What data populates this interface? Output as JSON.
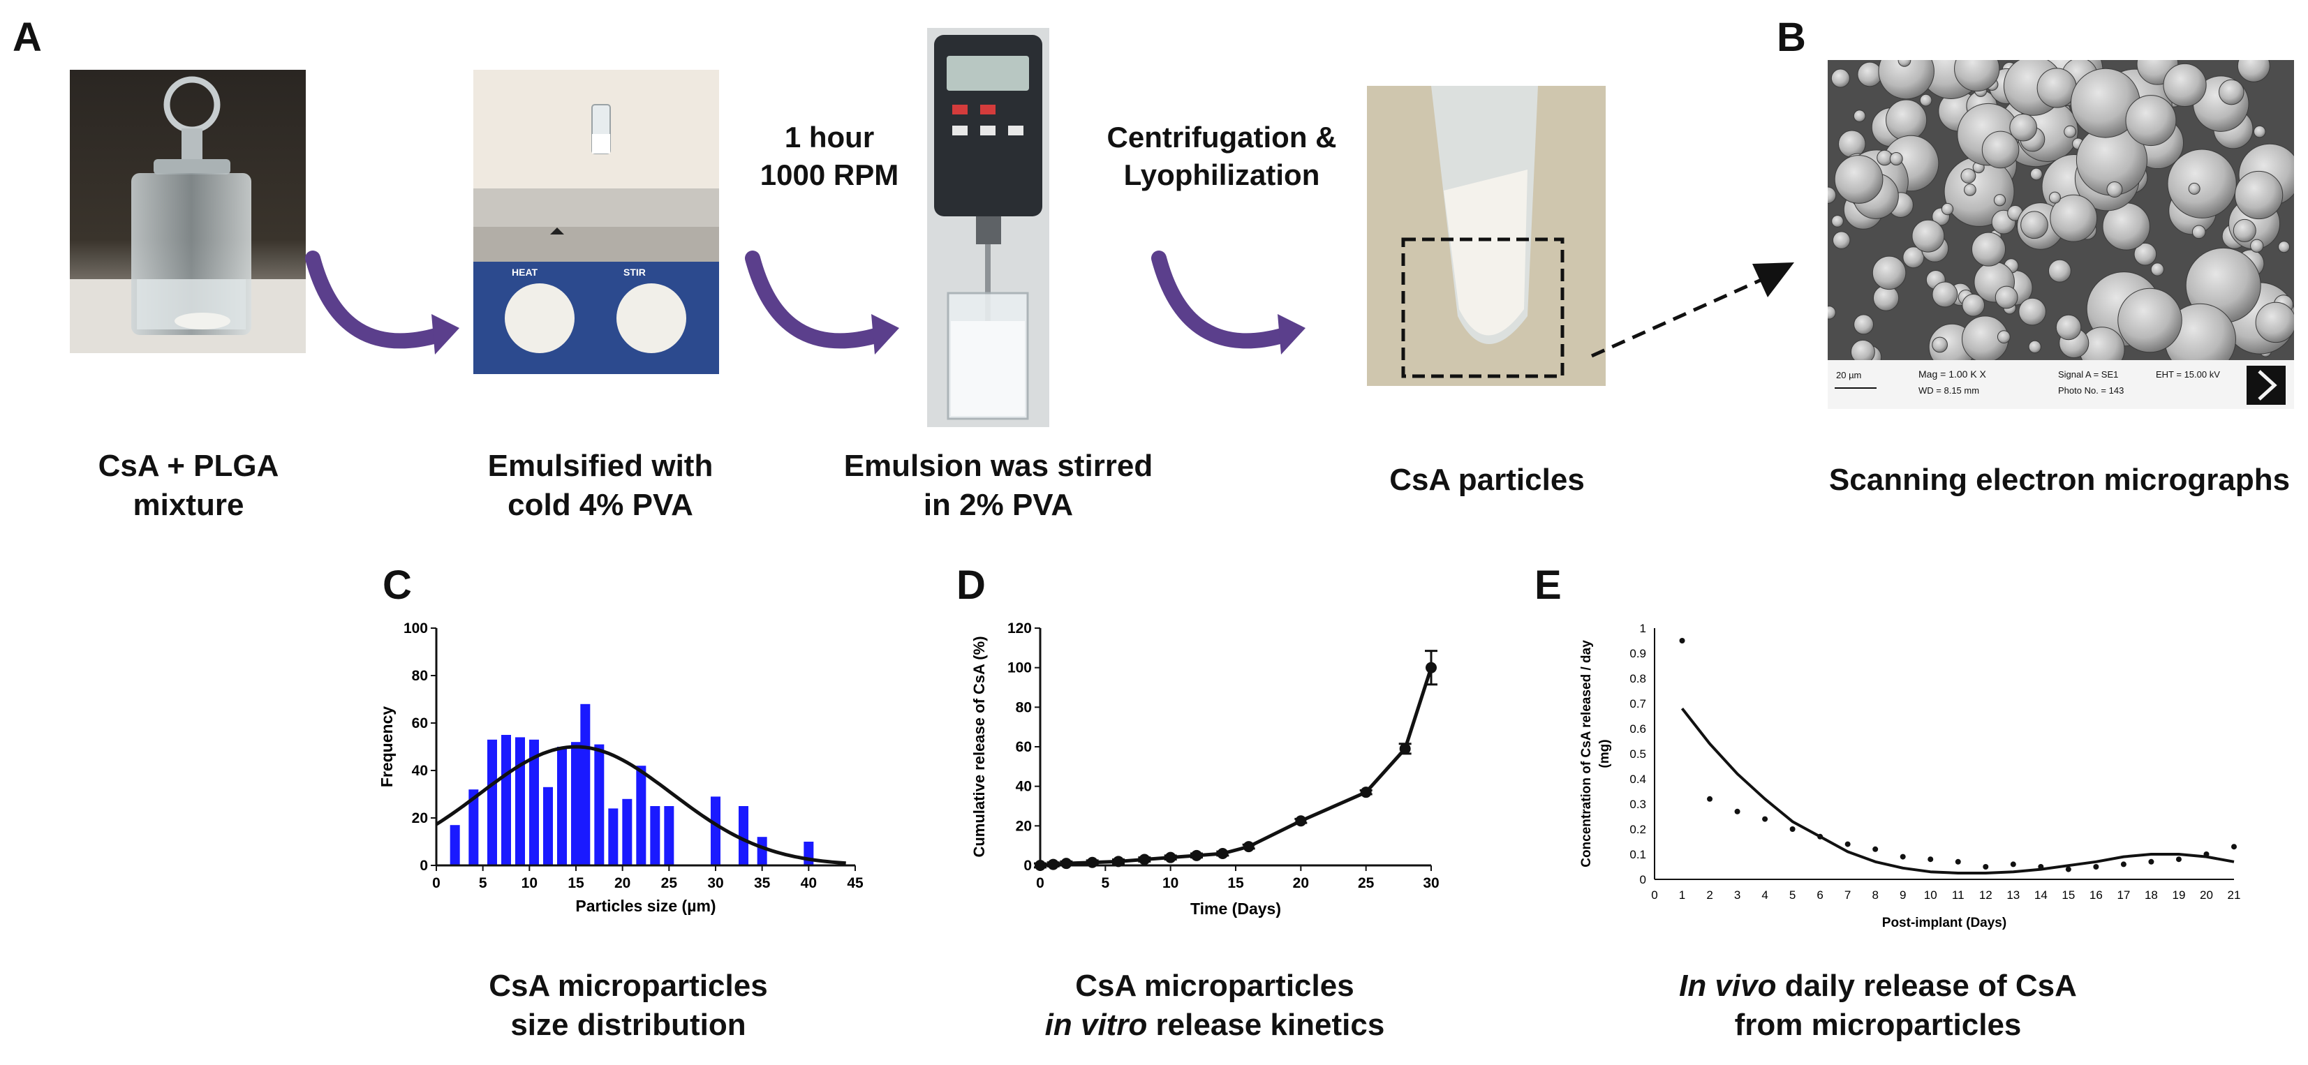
{
  "panel_a": {
    "letter": "A",
    "step_labels": [
      {
        "line1": "1 hour",
        "line2": "1000 RPM"
      },
      {
        "line1": "Centrifugation &",
        "line2": "Lyophilization"
      }
    ],
    "captions": [
      {
        "line1": "CsA + PLGA",
        "line2": "mixture"
      },
      {
        "line1": "Emulsified with",
        "line2": "cold 4% PVA"
      },
      {
        "line1": "Emulsion was stirred",
        "line2": "in 2% PVA"
      },
      {
        "line1": "CsA particles",
        "line2": ""
      }
    ],
    "photo_icons": [
      "glass-jar-icon",
      "hot-plate-icon",
      "overhead-stirrer-icon",
      "centrifuge-tube-icon"
    ],
    "arrow_color": "#5b3f8c"
  },
  "panel_b": {
    "letter": "B",
    "caption": "Scanning electron micrographs",
    "sem_info": {
      "scale": "20 µm",
      "mag": "Mag =    1.00 K X",
      "wd": "WD =  8.15 mm",
      "signal": "Signal A = SE1",
      "photo": "Photo No. = 143",
      "eht": "EHT = 15.00 kV"
    }
  },
  "panel_c": {
    "letter": "C",
    "caption_line1": "CsA microparticles",
    "caption_line2": "size distribution",
    "chart_data": {
      "type": "bar",
      "xlabel": "Particles size (µm)",
      "ylabel": "Frequency",
      "xlim": [
        0,
        45
      ],
      "ylim": [
        0,
        100
      ],
      "xticks": [
        0,
        5,
        10,
        15,
        20,
        25,
        30,
        35,
        40,
        45
      ],
      "yticks": [
        0,
        20,
        40,
        60,
        80,
        100
      ],
      "bar_color": "#1a1aff",
      "bars": [
        {
          "x": 2,
          "y": 17
        },
        {
          "x": 4,
          "y": 32
        },
        {
          "x": 6,
          "y": 53
        },
        {
          "x": 7.5,
          "y": 55
        },
        {
          "x": 9,
          "y": 54
        },
        {
          "x": 10.5,
          "y": 53
        },
        {
          "x": 12,
          "y": 33
        },
        {
          "x": 13.5,
          "y": 50
        },
        {
          "x": 15,
          "y": 52
        },
        {
          "x": 16,
          "y": 68
        },
        {
          "x": 17.5,
          "y": 51
        },
        {
          "x": 19,
          "y": 24
        },
        {
          "x": 20.5,
          "y": 28
        },
        {
          "x": 22,
          "y": 42
        },
        {
          "x": 23.5,
          "y": 25
        },
        {
          "x": 25,
          "y": 25
        },
        {
          "x": 30,
          "y": 29
        },
        {
          "x": 33,
          "y": 25
        },
        {
          "x": 35,
          "y": 12
        },
        {
          "x": 40,
          "y": 10
        }
      ],
      "fit_curve": {
        "peak_x": 15,
        "peak_y": 50,
        "sigma": 10.3,
        "baseline": 0
      }
    }
  },
  "panel_d": {
    "letter": "D",
    "caption_line1": "CsA microparticles",
    "caption_italic": "in vitro",
    "caption_rest": " release kinetics",
    "chart_data": {
      "type": "line",
      "xlabel": "Time (Days)",
      "ylabel": "Cumulative release of CsA (%)",
      "xlim": [
        0,
        30
      ],
      "ylim": [
        0,
        120
      ],
      "xticks": [
        0,
        5,
        10,
        15,
        20,
        25,
        30
      ],
      "yticks": [
        0,
        20,
        40,
        60,
        80,
        100,
        120
      ],
      "points": [
        {
          "x": 0,
          "y": 0,
          "err": 1
        },
        {
          "x": 1,
          "y": 0.5,
          "err": 1
        },
        {
          "x": 2,
          "y": 1,
          "err": 1
        },
        {
          "x": 4,
          "y": 1.5,
          "err": 1
        },
        {
          "x": 6,
          "y": 2,
          "err": 1
        },
        {
          "x": 8,
          "y": 3,
          "err": 1
        },
        {
          "x": 10,
          "y": 4,
          "err": 1
        },
        {
          "x": 12,
          "y": 5,
          "err": 1
        },
        {
          "x": 14,
          "y": 6,
          "err": 1
        },
        {
          "x": 16,
          "y": 9.5,
          "err": 1
        },
        {
          "x": 20,
          "y": 22.5,
          "err": 1
        },
        {
          "x": 25,
          "y": 37,
          "err": 1
        },
        {
          "x": 28,
          "y": 59,
          "err": 2.5
        },
        {
          "x": 30,
          "y": 100,
          "err": 8.5
        }
      ]
    }
  },
  "panel_e": {
    "letter": "E",
    "caption_italic": "In vivo",
    "caption_rest": " daily release of CsA",
    "caption_line2": "from microparticles",
    "chart_data": {
      "type": "scatter",
      "xlabel": "Post-implant (Days)",
      "ylabel_line1": "Concentration of CsA released / day",
      "ylabel_line2": "(mg)",
      "xlim": [
        0,
        21
      ],
      "ylim": [
        0,
        1
      ],
      "xticks": [
        0,
        1,
        2,
        3,
        4,
        5,
        6,
        7,
        8,
        9,
        10,
        11,
        12,
        13,
        14,
        15,
        16,
        17,
        18,
        19,
        20,
        21
      ],
      "yticks": [
        0,
        0.1,
        0.2,
        0.3,
        0.4,
        0.5,
        0.6,
        0.7,
        0.8,
        0.9,
        1
      ],
      "ytick_labels": [
        "0",
        "0.1",
        "0.2",
        "0.3",
        "0.4",
        "0.5",
        "0.6",
        "0.7",
        "0.8",
        "0.9",
        "1"
      ],
      "points": [
        {
          "x": 1,
          "y": 0.95
        },
        {
          "x": 2,
          "y": 0.32
        },
        {
          "x": 3,
          "y": 0.27
        },
        {
          "x": 4,
          "y": 0.24
        },
        {
          "x": 5,
          "y": 0.2
        },
        {
          "x": 6,
          "y": 0.17
        },
        {
          "x": 7,
          "y": 0.14
        },
        {
          "x": 8,
          "y": 0.12
        },
        {
          "x": 9,
          "y": 0.09
        },
        {
          "x": 10,
          "y": 0.08
        },
        {
          "x": 11,
          "y": 0.07
        },
        {
          "x": 12,
          "y": 0.05
        },
        {
          "x": 13,
          "y": 0.06
        },
        {
          "x": 14,
          "y": 0.05
        },
        {
          "x": 15,
          "y": 0.04
        },
        {
          "x": 16,
          "y": 0.05
        },
        {
          "x": 17,
          "y": 0.06
        },
        {
          "x": 18,
          "y": 0.07
        },
        {
          "x": 19,
          "y": 0.08
        },
        {
          "x": 20,
          "y": 0.1
        },
        {
          "x": 21,
          "y": 0.13
        }
      ],
      "fit_curve": [
        {
          "x": 1,
          "y": 0.68
        },
        {
          "x": 2,
          "y": 0.54
        },
        {
          "x": 3,
          "y": 0.42
        },
        {
          "x": 4,
          "y": 0.32
        },
        {
          "x": 5,
          "y": 0.23
        },
        {
          "x": 6,
          "y": 0.17
        },
        {
          "x": 7,
          "y": 0.11
        },
        {
          "x": 8,
          "y": 0.07
        },
        {
          "x": 9,
          "y": 0.045
        },
        {
          "x": 10,
          "y": 0.03
        },
        {
          "x": 11,
          "y": 0.025
        },
        {
          "x": 12,
          "y": 0.025
        },
        {
          "x": 13,
          "y": 0.03
        },
        {
          "x": 14,
          "y": 0.04
        },
        {
          "x": 15,
          "y": 0.055
        },
        {
          "x": 16,
          "y": 0.07
        },
        {
          "x": 17,
          "y": 0.09
        },
        {
          "x": 18,
          "y": 0.1
        },
        {
          "x": 19,
          "y": 0.1
        },
        {
          "x": 20,
          "y": 0.09
        },
        {
          "x": 21,
          "y": 0.07
        }
      ]
    }
  }
}
